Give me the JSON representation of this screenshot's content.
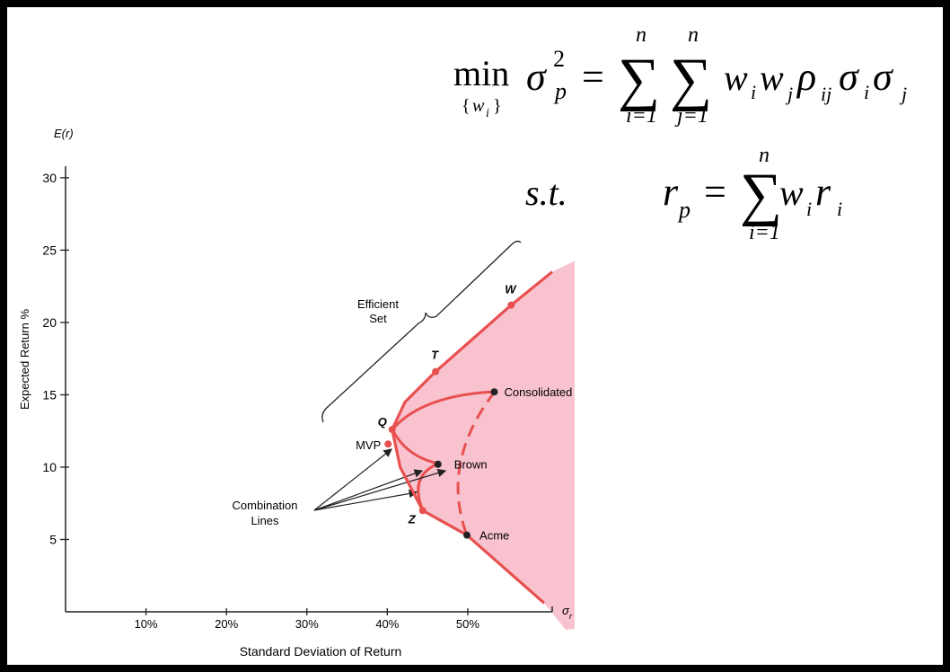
{
  "chart_data": {
    "type": "scatter",
    "y_top_label": "E(r)",
    "ylabel": "Expected Return %",
    "xlabel": "Standard Deviation of Return",
    "x_end_label": "σ",
    "x_end_sub": "r",
    "xlim": [
      0,
      60.5
    ],
    "ylim": [
      0,
      30.8
    ],
    "xticks": [
      {
        "value": 10,
        "label": "10%"
      },
      {
        "value": 20,
        "label": "20%"
      },
      {
        "value": 30,
        "label": "30%"
      },
      {
        "value": 40,
        "label": "40%"
      },
      {
        "value": 50,
        "label": "50%"
      }
    ],
    "yticks": [
      5,
      10,
      15,
      20,
      25,
      30
    ],
    "frontier": {
      "color": "#e8504f",
      "x": [
        59.5,
        49.9,
        44.4,
        41.6,
        40.6,
        42.2,
        46.0,
        55.4,
        60.5
      ],
      "y": [
        0.6,
        5.3,
        7.0,
        10.0,
        12.6,
        14.5,
        16.6,
        21.2,
        23.5
      ]
    },
    "points": [
      {
        "label": "W",
        "x": 55.4,
        "y": 21.2,
        "color": "#e8504f"
      },
      {
        "label": "T",
        "x": 46.0,
        "y": 16.6,
        "color": "#e8504f"
      },
      {
        "label": "Q",
        "x": 40.6,
        "y": 12.6,
        "color": "#e8504f"
      },
      {
        "label": "MVP",
        "x": 40.1,
        "y": 11.6,
        "color": "#e8504f"
      },
      {
        "label": "Z",
        "x": 44.4,
        "y": 7.0,
        "color": "#e8504f"
      },
      {
        "label": "Consolidated",
        "x": 53.3,
        "y": 15.2,
        "color": "#222222"
      },
      {
        "label": "Brown",
        "x": 46.3,
        "y": 10.2,
        "color": "#222222"
      },
      {
        "label": "Acme",
        "x": 49.9,
        "y": 5.3,
        "color": "#222222"
      }
    ],
    "annotations": {
      "efficient_set": [
        "Efficient",
        "Set"
      ],
      "combination_lines": [
        "Combination",
        "Lines"
      ]
    }
  },
  "formulas": {
    "objective": [
      "min",
      "{",
      "w",
      "i",
      "}",
      "σ",
      "2",
      "p",
      "=",
      "∑",
      "n",
      "i=1",
      "∑",
      "n",
      "j=1",
      "w",
      "i",
      "w",
      "j",
      "ρ",
      "ij",
      "σ",
      "i",
      "σ",
      "j"
    ],
    "constraint": [
      "s.t.",
      "r",
      "p",
      "=",
      "∑",
      "n",
      "i=1",
      "w",
      "i",
      "r",
      "i"
    ]
  }
}
